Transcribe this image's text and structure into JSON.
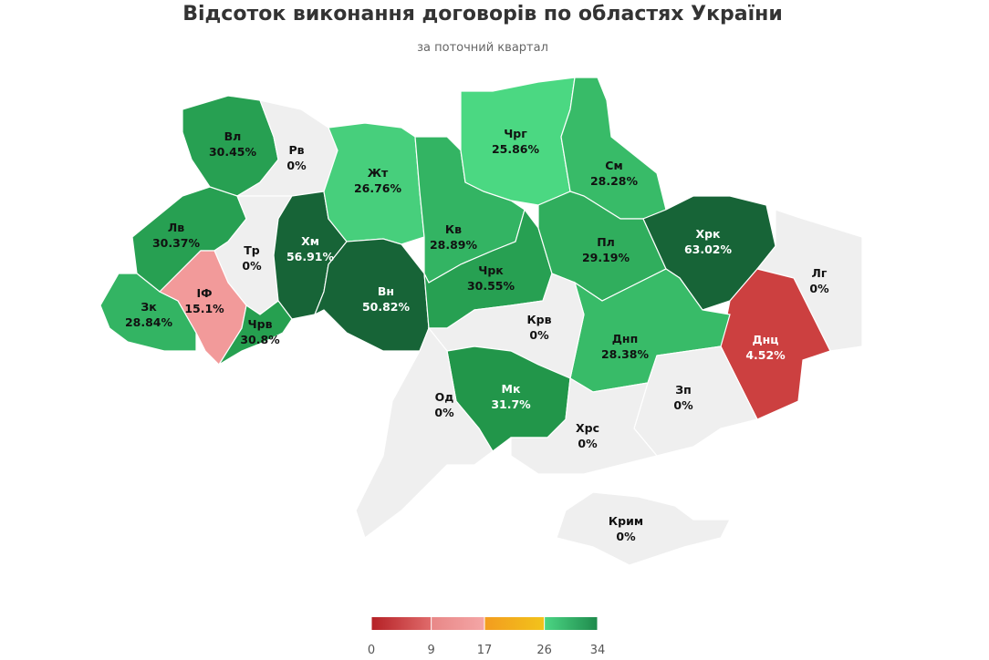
{
  "title": "Відсоток виконання договорів по областях України",
  "subtitle": "за поточний квартал",
  "regions": [
    {
      "name": "Вл",
      "value": 30.45,
      "value_label": "30.45%",
      "color": "#27a052"
    },
    {
      "name": "Рв",
      "value": 0,
      "value_label": "0%",
      "color": "#efefef"
    },
    {
      "name": "Лв",
      "value": 30.37,
      "value_label": "30.37%",
      "color": "#27a052"
    },
    {
      "name": "Тр",
      "value": 0,
      "value_label": "0%",
      "color": "#efefef"
    },
    {
      "name": "Хм",
      "value": 56.91,
      "value_label": "56.91%",
      "color": "#176437"
    },
    {
      "name": "Зк",
      "value": 28.84,
      "value_label": "28.84%",
      "color": "#33b463"
    },
    {
      "name": "ІФ",
      "value": 15.1,
      "value_label": "15.1%",
      "color": "#f29a9a"
    },
    {
      "name": "Чрв",
      "value": 30.8,
      "value_label": "30.8%",
      "color": "#26a050"
    },
    {
      "name": "Жт",
      "value": 26.76,
      "value_label": "26.76%",
      "color": "#47cf7c"
    },
    {
      "name": "Вн",
      "value": 50.82,
      "value_label": "50.82%",
      "color": "#176437"
    },
    {
      "name": "Кв",
      "value": 28.89,
      "value_label": "28.89%",
      "color": "#33b463"
    },
    {
      "name": "Чрг",
      "value": 25.86,
      "value_label": "25.86%",
      "color": "#4bd882"
    },
    {
      "name": "См",
      "value": 28.28,
      "value_label": "28.28%",
      "color": "#38bb68"
    },
    {
      "name": "Чрк",
      "value": 30.55,
      "value_label": "30.55%",
      "color": "#27a052"
    },
    {
      "name": "Пл",
      "value": 29.19,
      "value_label": "29.19%",
      "color": "#30ae5d"
    },
    {
      "name": "Хрк",
      "value": 63.02,
      "value_label": "63.02%",
      "color": "#176437"
    },
    {
      "name": "Лг",
      "value": 0,
      "value_label": "0%",
      "color": "#efefef"
    },
    {
      "name": "Днц",
      "value": 4.52,
      "value_label": "4.52%",
      "color": "#cc4040"
    },
    {
      "name": "Днп",
      "value": 28.38,
      "value_label": "28.38%",
      "color": "#38bb68"
    },
    {
      "name": "Крв",
      "value": 0,
      "value_label": "0%",
      "color": "#efefef"
    },
    {
      "name": "Мк",
      "value": 31.7,
      "value_label": "31.7%",
      "color": "#22964a"
    },
    {
      "name": "Од",
      "value": 0,
      "value_label": "0%",
      "color": "#efefef"
    },
    {
      "name": "Зп",
      "value": 0,
      "value_label": "0%",
      "color": "#efefef"
    },
    {
      "name": "Хрс",
      "value": 0,
      "value_label": "0%",
      "color": "#efefef"
    },
    {
      "name": "Крим",
      "value": 0,
      "value_label": "0%",
      "color": "#efefef"
    }
  ],
  "legend": {
    "ticks": [
      0,
      9,
      17,
      26,
      34
    ],
    "colors": [
      [
        "#b52025",
        "#e06b6b"
      ],
      [
        "#e88787",
        "#f4a6a6"
      ],
      [
        "#f39c1f",
        "#f2c31b"
      ],
      [
        "#4cd684",
        "#1e8a4c"
      ]
    ]
  }
}
